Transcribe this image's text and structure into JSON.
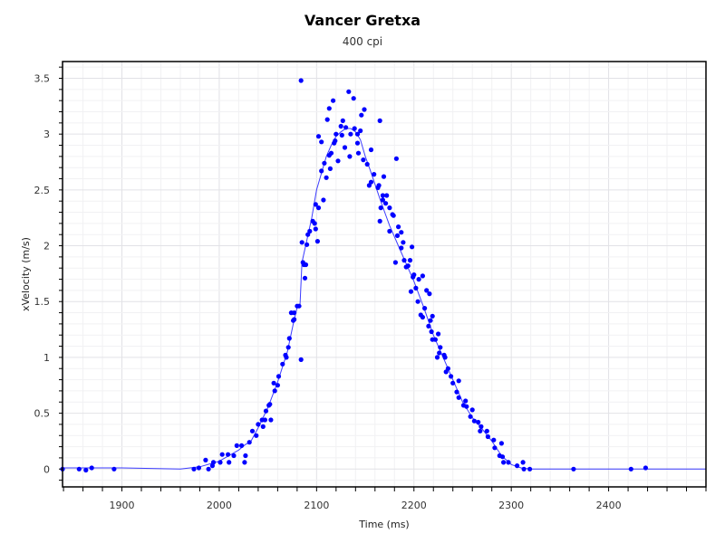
{
  "chart_data": {
    "type": "scatter",
    "title": "Vancer Gretxa",
    "subtitle": "400 cpi",
    "xlabel": "Time (ms)",
    "ylabel": "xVelocity (m/s)",
    "xlim": [
      1839,
      2500
    ],
    "ylim": [
      -0.16,
      3.65
    ],
    "x_ticks": [
      1900,
      2000,
      2100,
      2200,
      2300,
      2400
    ],
    "x_tick_labels": [
      "1900",
      "2000",
      "2100",
      "2200",
      "2300",
      "2400"
    ],
    "y_ticks": [
      0,
      0.5,
      1,
      1.5,
      2,
      2.5,
      3,
      3.5
    ],
    "y_tick_labels": [
      "0",
      "0.5",
      "1",
      "1.5",
      "2",
      "2.5",
      "3",
      "3.5"
    ],
    "grid": true,
    "colors": {
      "points": "#0000ff",
      "line": "#1a1aff",
      "grid": "#e6e6e6",
      "axis": "#000000"
    },
    "series": [
      {
        "type": "scatter",
        "points": [
          [
            1839,
            0
          ],
          [
            1856,
            0
          ],
          [
            1863,
            -0.01
          ],
          [
            1869,
            0.01
          ],
          [
            1892,
            0
          ],
          [
            1974,
            0
          ],
          [
            1979,
            0.01
          ],
          [
            1986,
            0.08
          ],
          [
            1989,
            0
          ],
          [
            1993,
            0.03
          ],
          [
            1994,
            0.06
          ],
          [
            2001,
            0.06
          ],
          [
            2003,
            0.13
          ],
          [
            2009,
            0.13
          ],
          [
            2010,
            0.06
          ],
          [
            2015,
            0.12
          ],
          [
            2018,
            0.21
          ],
          [
            2023,
            0.21
          ],
          [
            2027,
            0.12
          ],
          [
            2026,
            0.06
          ],
          [
            2031,
            0.24
          ],
          [
            2034,
            0.34
          ],
          [
            2038,
            0.3
          ],
          [
            2040,
            0.4
          ],
          [
            2045,
            0.38
          ],
          [
            2044,
            0.44
          ],
          [
            2047,
            0.44
          ],
          [
            2053,
            0.44
          ],
          [
            2048,
            0.52
          ],
          [
            2051,
            0.57
          ],
          [
            2052,
            0.58
          ],
          [
            2057,
            0.7
          ],
          [
            2056,
            0.77
          ],
          [
            2060,
            0.75
          ],
          [
            2061,
            0.83
          ],
          [
            2065,
            0.94
          ],
          [
            2068,
            1.02
          ],
          [
            2069,
            1.0
          ],
          [
            2071,
            1.09
          ],
          [
            2072,
            1.17
          ],
          [
            2076,
            1.33
          ],
          [
            2077,
            1.34
          ],
          [
            2074,
            1.4
          ],
          [
            2077,
            1.4
          ],
          [
            2080,
            1.46
          ],
          [
            2082,
            1.46
          ],
          [
            2084,
            0.98
          ],
          [
            2088,
            1.71
          ],
          [
            2086,
            1.85
          ],
          [
            2089,
            1.83
          ],
          [
            2087,
            1.83
          ],
          [
            2085,
            2.03
          ],
          [
            2090,
            2.01
          ],
          [
            2091,
            2.1
          ],
          [
            2093,
            2.13
          ],
          [
            2084,
            3.48
          ],
          [
            2133,
            3.38
          ],
          [
            2138,
            3.32
          ],
          [
            2117,
            3.3
          ],
          [
            2113,
            3.23
          ],
          [
            2149,
            3.22
          ],
          [
            2146,
            3.17
          ],
          [
            2111,
            3.13
          ],
          [
            2127,
            3.12
          ],
          [
            2165,
            3.12
          ],
          [
            2125,
            3.07
          ],
          [
            2130,
            3.06
          ],
          [
            2139,
            3.05
          ],
          [
            2145,
            3.03
          ],
          [
            2135,
            3.0
          ],
          [
            2126,
            2.99
          ],
          [
            2142,
            3.0
          ],
          [
            2120,
            3.0
          ],
          [
            2102,
            2.98
          ],
          [
            2105,
            2.93
          ],
          [
            2119,
            2.94
          ],
          [
            2118,
            2.92
          ],
          [
            2142,
            2.92
          ],
          [
            2129,
            2.88
          ],
          [
            2156,
            2.86
          ],
          [
            2115,
            2.83
          ],
          [
            2113,
            2.81
          ],
          [
            2143,
            2.83
          ],
          [
            2134,
            2.8
          ],
          [
            2182,
            2.78
          ],
          [
            2108,
            2.74
          ],
          [
            2122,
            2.76
          ],
          [
            2148,
            2.77
          ],
          [
            2152,
            2.73
          ],
          [
            2105,
            2.67
          ],
          [
            2114,
            2.69
          ],
          [
            2110,
            2.61
          ],
          [
            2159,
            2.64
          ],
          [
            2169,
            2.62
          ],
          [
            2156,
            2.57
          ],
          [
            2154,
            2.54
          ],
          [
            2164,
            2.54
          ],
          [
            2163,
            2.52
          ],
          [
            2168,
            2.45
          ],
          [
            2172,
            2.45
          ],
          [
            2168,
            2.41
          ],
          [
            2171,
            2.38
          ],
          [
            2107,
            2.41
          ],
          [
            2099,
            2.37
          ],
          [
            2102,
            2.34
          ],
          [
            2175,
            2.34
          ],
          [
            2166,
            2.34
          ],
          [
            2178,
            2.28
          ],
          [
            2179,
            2.27
          ],
          [
            2096,
            2.22
          ],
          [
            2098,
            2.2
          ],
          [
            2165,
            2.22
          ],
          [
            2099,
            2.15
          ],
          [
            2184,
            2.17
          ],
          [
            2101,
            2.04
          ],
          [
            2175,
            2.13
          ],
          [
            2183,
            2.09
          ],
          [
            2187,
            2.12
          ],
          [
            2189,
            2.03
          ],
          [
            2198,
            1.99
          ],
          [
            2187,
            1.98
          ],
          [
            2181,
            1.85
          ],
          [
            2190,
            1.87
          ],
          [
            2196,
            1.87
          ],
          [
            2192,
            1.81
          ],
          [
            2194,
            1.82
          ],
          [
            2200,
            1.74
          ],
          [
            2199,
            1.72
          ],
          [
            2209,
            1.73
          ],
          [
            2205,
            1.7
          ],
          [
            2202,
            1.62
          ],
          [
            2197,
            1.59
          ],
          [
            2213,
            1.6
          ],
          [
            2216,
            1.57
          ],
          [
            2204,
            1.5
          ],
          [
            2211,
            1.44
          ],
          [
            2207,
            1.38
          ],
          [
            2209,
            1.36
          ],
          [
            2219,
            1.37
          ],
          [
            2217,
            1.33
          ],
          [
            2215,
            1.28
          ],
          [
            2218,
            1.23
          ],
          [
            2225,
            1.21
          ],
          [
            2219,
            1.16
          ],
          [
            2222,
            1.16
          ],
          [
            2227,
            1.09
          ],
          [
            2226,
            1.04
          ],
          [
            2224,
            1.0
          ],
          [
            2231,
            1.02
          ],
          [
            2232,
            1.0
          ],
          [
            2235,
            0.9
          ],
          [
            2233,
            0.87
          ],
          [
            2238,
            0.83
          ],
          [
            2246,
            0.79
          ],
          [
            2240,
            0.77
          ],
          [
            2244,
            0.69
          ],
          [
            2246,
            0.64
          ],
          [
            2253,
            0.61
          ],
          [
            2251,
            0.57
          ],
          [
            2254,
            0.56
          ],
          [
            2260,
            0.53
          ],
          [
            2258,
            0.47
          ],
          [
            2262,
            0.43
          ],
          [
            2266,
            0.42
          ],
          [
            2269,
            0.38
          ],
          [
            2268,
            0.34
          ],
          [
            2275,
            0.34
          ],
          [
            2276,
            0.29
          ],
          [
            2282,
            0.26
          ],
          [
            2290,
            0.23
          ],
          [
            2283,
            0.19
          ],
          [
            2288,
            0.12
          ],
          [
            2291,
            0.11
          ],
          [
            2292,
            0.06
          ],
          [
            2297,
            0.06
          ],
          [
            2312,
            0.06
          ],
          [
            2306,
            0.03
          ],
          [
            2313,
            0.0
          ],
          [
            2319,
            0.0
          ],
          [
            2364,
            0
          ],
          [
            2423,
            0
          ],
          [
            2438,
            0.01
          ]
        ]
      },
      {
        "type": "line",
        "points": [
          [
            1839,
            0.01
          ],
          [
            1900,
            0.01
          ],
          [
            1960,
            0
          ],
          [
            1980,
            0.02
          ],
          [
            2000,
            0.07
          ],
          [
            2020,
            0.17
          ],
          [
            2027,
            0.22
          ],
          [
            2032,
            0.24
          ],
          [
            2040,
            0.37
          ],
          [
            2050,
            0.55
          ],
          [
            2060,
            0.78
          ],
          [
            2070,
            1.05
          ],
          [
            2076,
            1.3
          ],
          [
            2080,
            1.45
          ],
          [
            2083,
            1.48
          ],
          [
            2085,
            1.85
          ],
          [
            2090,
            2.05
          ],
          [
            2095,
            2.25
          ],
          [
            2100,
            2.5
          ],
          [
            2105,
            2.65
          ],
          [
            2110,
            2.8
          ],
          [
            2115,
            2.9
          ],
          [
            2120,
            2.98
          ],
          [
            2125,
            3.02
          ],
          [
            2130,
            3.05
          ],
          [
            2135,
            3.05
          ],
          [
            2140,
            3.02
          ],
          [
            2145,
            2.95
          ],
          [
            2150,
            2.8
          ],
          [
            2155,
            2.68
          ],
          [
            2160,
            2.55
          ],
          [
            2165,
            2.42
          ],
          [
            2170,
            2.3
          ],
          [
            2175,
            2.18
          ],
          [
            2180,
            2.08
          ],
          [
            2185,
            1.98
          ],
          [
            2190,
            1.88
          ],
          [
            2195,
            1.78
          ],
          [
            2200,
            1.68
          ],
          [
            2210,
            1.45
          ],
          [
            2220,
            1.2
          ],
          [
            2230,
            1.0
          ],
          [
            2240,
            0.8
          ],
          [
            2250,
            0.6
          ],
          [
            2260,
            0.46
          ],
          [
            2270,
            0.36
          ],
          [
            2280,
            0.25
          ],
          [
            2290,
            0.12
          ],
          [
            2300,
            0.04
          ],
          [
            2310,
            0.01
          ],
          [
            2320,
            0
          ],
          [
            2500,
            0
          ]
        ]
      }
    ]
  }
}
